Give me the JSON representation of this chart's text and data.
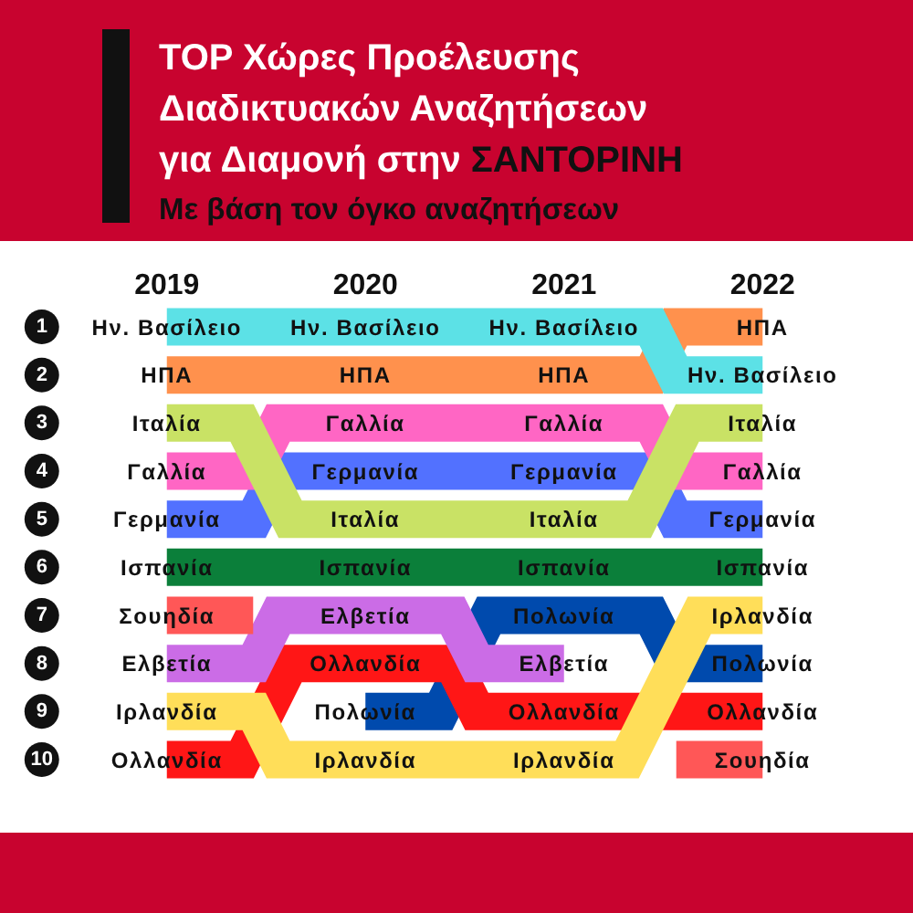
{
  "chart_data": {
    "type": "step",
    "title": "TOP Χώρες Προέλευσης Διαδικτυακών Αναζητήσεων για Διαμονή στην ΣΑΝΤΟΡΙΝΗ",
    "subtitle": "Με βάση τον όγκο αναζητήσεων",
    "categories": [
      "2019",
      "2020",
      "2021",
      "2022"
    ],
    "ylim": [
      10,
      1
    ],
    "yticks": [
      1,
      2,
      3,
      4,
      5,
      6,
      7,
      8,
      9,
      10
    ],
    "series": [
      {
        "name": "Ην. Βασίλειο",
        "color": "#5ce1e6",
        "values": [
          1,
          1,
          1,
          2
        ]
      },
      {
        "name": "ΗΠΑ",
        "color": "#ff914d",
        "values": [
          2,
          2,
          2,
          1
        ]
      },
      {
        "name": "Ιταλία",
        "color": "#c9e265",
        "values": [
          3,
          5,
          5,
          3
        ]
      },
      {
        "name": "Γαλλία",
        "color": "#ff66c4",
        "values": [
          4,
          3,
          3,
          4
        ]
      },
      {
        "name": "Γερμανία",
        "color": "#5271ff",
        "values": [
          5,
          4,
          4,
          5
        ]
      },
      {
        "name": "Ισπανία",
        "color": "#0b7f3a",
        "values": [
          6,
          6,
          6,
          6
        ]
      },
      {
        "name": "Σουηδία",
        "color": "#ff5757",
        "values": [
          7,
          null,
          null,
          10
        ]
      },
      {
        "name": "Ελβετία",
        "color": "#cb6ce6",
        "values": [
          8,
          7,
          8,
          null
        ]
      },
      {
        "name": "Ιρλανδία",
        "color": "#ffde59",
        "values": [
          9,
          10,
          10,
          7
        ]
      },
      {
        "name": "Ολλανδία",
        "color": "#ff1616",
        "values": [
          10,
          8,
          9,
          9
        ]
      },
      {
        "name": "Πολωνία",
        "color": "#004aad",
        "values": [
          null,
          9,
          7,
          8
        ]
      }
    ]
  }
}
